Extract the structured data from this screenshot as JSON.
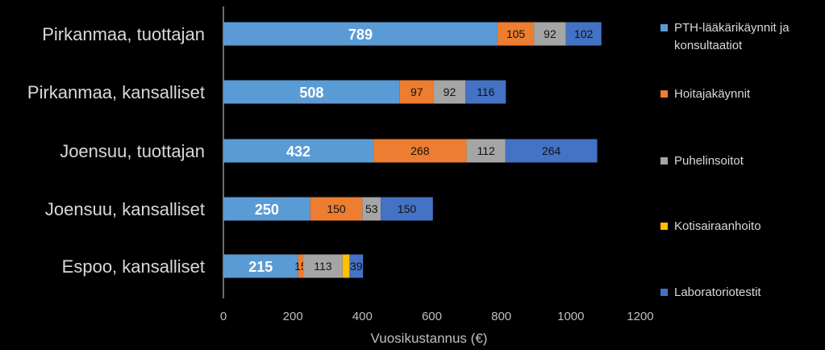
{
  "chart_data": {
    "type": "bar",
    "orientation": "horizontal",
    "stacked": true,
    "categories": [
      "Pirkanmaa, tuottajan",
      "Pirkanmaa, kansalliset",
      "Joensuu, tuottajan",
      "Joensuu, kansalliset",
      "Espoo, kansalliset"
    ],
    "series": [
      {
        "name": "PTH-lääkärikäynnit ja konsultaatiot",
        "color": "#5b9bd5",
        "values": [
          789,
          508,
          432,
          250,
          215
        ],
        "labels": [
          "789",
          "508",
          "432",
          "250",
          "215"
        ]
      },
      {
        "name": "Hoitajakäynnit",
        "color": "#ed7d31",
        "values": [
          105,
          97,
          268,
          150,
          15
        ],
        "labels": [
          "105",
          "97",
          "268",
          "150",
          "15"
        ]
      },
      {
        "name": "Puhelinsoitot",
        "color": "#a5a5a5",
        "values": [
          92,
          92,
          112,
          53,
          113
        ],
        "labels": [
          "92",
          "92",
          "112",
          "53",
          "113"
        ]
      },
      {
        "name": "Kotisairaanhoito",
        "color": "#ffc000",
        "values": [
          0,
          0,
          0,
          0,
          20
        ],
        "labels": [
          "",
          "",
          "",
          "",
          ""
        ]
      },
      {
        "name": "Laboratoriotestit",
        "color": "#4472c4",
        "values": [
          102,
          116,
          264,
          150,
          39
        ],
        "labels": [
          "102",
          "116",
          "264",
          "150",
          "39"
        ]
      }
    ],
    "xlabel": "Vuosikustannus (€)",
    "ylabel": "",
    "xlim": [
      0,
      1200
    ],
    "xticks": [
      0,
      200,
      400,
      600,
      800,
      1000,
      1200
    ],
    "grid": false,
    "legend_position": "right"
  }
}
